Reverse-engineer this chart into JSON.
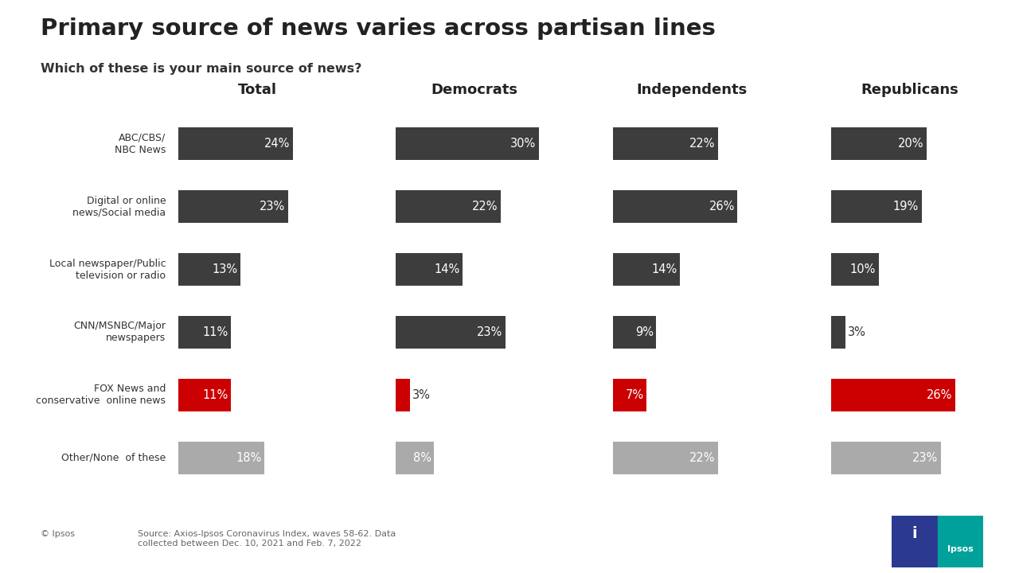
{
  "title": "Primary source of news varies across partisan lines",
  "subtitle": "Which of these is your main source of news?",
  "footnote": "Source: Axios-Ipsos Coronavirus Index, waves 58-62. Data\ncollected between Dec. 10, 2021 and Feb. 7, 2022",
  "copyright": "© Ipsos",
  "groups": [
    "Total",
    "Democrats",
    "Independents",
    "Republicans"
  ],
  "categories": [
    "ABC/CBS/\nNBC News",
    "Digital or online\nnews/Social media",
    "Local newspaper/Public\n television or radio",
    "CNN/MSNBC/Major\nnewspapers",
    "FOX News and\nconservative  online news",
    "Other/None  of these"
  ],
  "values": [
    [
      24,
      30,
      22,
      20
    ],
    [
      23,
      22,
      26,
      19
    ],
    [
      13,
      14,
      14,
      10
    ],
    [
      11,
      23,
      9,
      3
    ],
    [
      11,
      3,
      7,
      26
    ],
    [
      18,
      8,
      22,
      23
    ]
  ],
  "bar_colors": [
    [
      "#3d3d3d",
      "#3d3d3d",
      "#3d3d3d",
      "#3d3d3d"
    ],
    [
      "#3d3d3d",
      "#3d3d3d",
      "#3d3d3d",
      "#3d3d3d"
    ],
    [
      "#3d3d3d",
      "#3d3d3d",
      "#3d3d3d",
      "#3d3d3d"
    ],
    [
      "#3d3d3d",
      "#3d3d3d",
      "#3d3d3d",
      "#3d3d3d"
    ],
    [
      "#cc0000",
      "#cc0000",
      "#cc0000",
      "#cc0000"
    ],
    [
      "#aaaaaa",
      "#aaaaaa",
      "#aaaaaa",
      "#aaaaaa"
    ]
  ],
  "max_val": 33,
  "background_color": "#ffffff",
  "title_color": "#222222",
  "subtitle_color": "#333333",
  "label_color_inside": "#ffffff",
  "label_color_outside": "#333333",
  "category_color": "#333333",
  "group_color": "#222222",
  "outside_threshold": 5
}
